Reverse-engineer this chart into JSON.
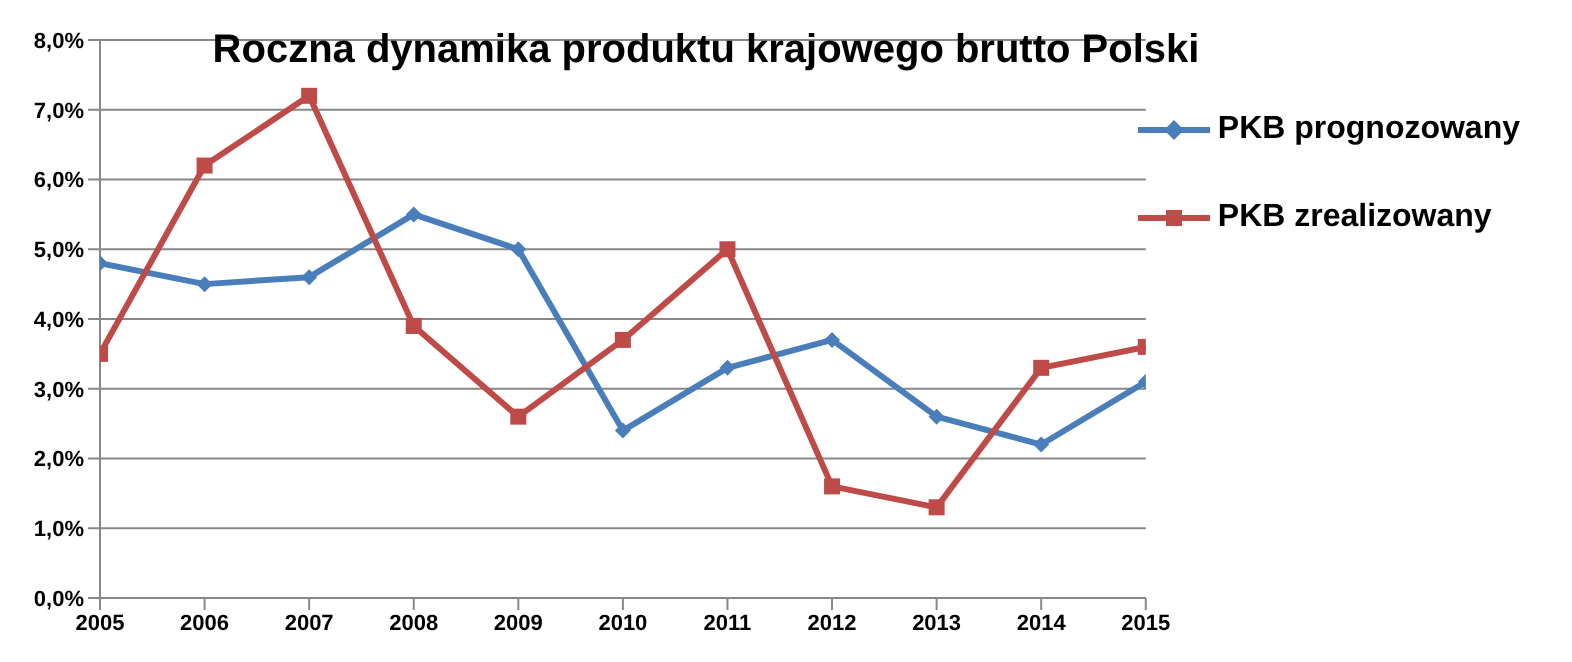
{
  "chart_data": {
    "type": "line",
    "title": "Roczna dynamika produktu krajowego brutto Polski",
    "x": [
      2005,
      2006,
      2007,
      2008,
      2009,
      2010,
      2011,
      2012,
      2013,
      2014,
      2015
    ],
    "series": [
      {
        "name": "PKB prognozowany",
        "color": "#4a7ebb",
        "marker": "diamond",
        "values": [
          4.8,
          4.5,
          4.6,
          5.5,
          5.0,
          2.4,
          3.3,
          3.7,
          2.6,
          2.2,
          3.1
        ]
      },
      {
        "name": "PKB zrealizowany",
        "color": "#be4b48",
        "marker": "square",
        "values": [
          3.5,
          6.2,
          7.2,
          3.9,
          2.6,
          3.7,
          5.0,
          1.6,
          1.3,
          3.3,
          3.6
        ]
      }
    ],
    "xlim": [
      2005,
      2015
    ],
    "xticks": [
      2005,
      2006,
      2007,
      2008,
      2009,
      2010,
      2011,
      2012,
      2013,
      2014,
      2015
    ],
    "ylim": [
      0,
      8
    ],
    "yticks": [
      {
        "value": 0,
        "label": "0,0%"
      },
      {
        "value": 1,
        "label": "1,0%"
      },
      {
        "value": 2,
        "label": "2,0%"
      },
      {
        "value": 3,
        "label": "3,0%"
      },
      {
        "value": 4,
        "label": "4,0%"
      },
      {
        "value": 5,
        "label": "5,0%"
      },
      {
        "value": 6,
        "label": "6,0%"
      },
      {
        "value": 7,
        "label": "7,0%"
      },
      {
        "value": 8,
        "label": "8,0%"
      }
    ],
    "grid": "y",
    "legend": "top right",
    "line_style": "solid"
  }
}
